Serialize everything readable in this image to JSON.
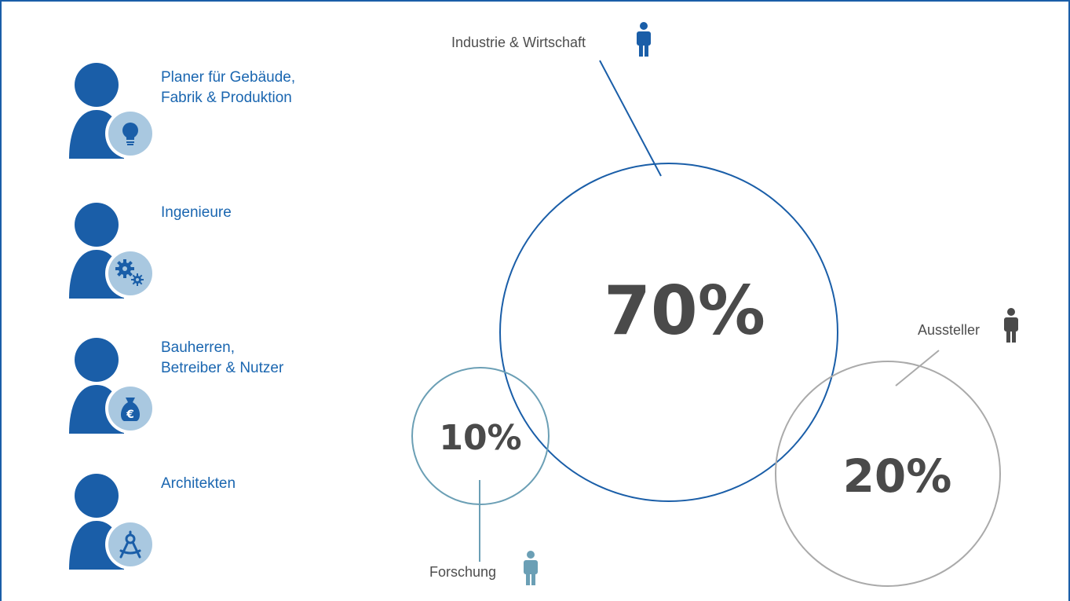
{
  "colors": {
    "brand_blue": "#1a5ea8",
    "badge_bg": "#a9c8e0",
    "teal": "#6b9fb5",
    "gray": "#aaaaaa",
    "dark_gray": "#4a4a4a"
  },
  "audience": [
    {
      "label_lines": [
        "Planer für Gebäude,",
        "Fabrik & Produktion"
      ],
      "badge_icon": "lightbulb-icon"
    },
    {
      "label_lines": [
        "Ingenieure"
      ],
      "badge_icon": "gears-icon"
    },
    {
      "label_lines": [
        "Bauherren,",
        "Betreiber & Nutzer"
      ],
      "badge_icon": "money-bag-euro-icon"
    },
    {
      "label_lines": [
        "Architekten"
      ],
      "badge_icon": "compass-icon"
    }
  ],
  "shares": [
    {
      "category": "Industrie & Wirtschaft",
      "percent": 70,
      "value_label": "70%",
      "icon": "person-icon",
      "color": "#1a5ea8"
    },
    {
      "category": "Forschung",
      "percent": 10,
      "value_label": "10%",
      "icon": "person-icon",
      "color": "#6b9fb5"
    },
    {
      "category": "Aussteller",
      "percent": 20,
      "value_label": "20%",
      "icon": "person-icon",
      "color": "#aaaaaa"
    }
  ]
}
